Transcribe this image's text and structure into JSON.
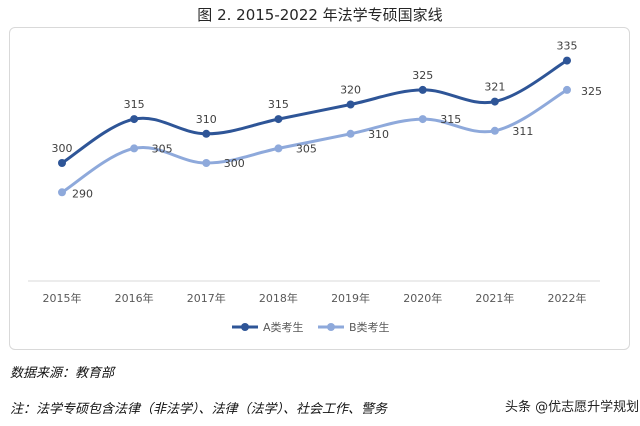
{
  "title": "图 2. 2015-2022 年法学专硕国家线",
  "chart_data": {
    "type": "line",
    "categories": [
      "2015年",
      "2016年",
      "2017年",
      "2018年",
      "2019年",
      "2020年",
      "2021年",
      "2022年"
    ],
    "series": [
      {
        "name": "A类考生",
        "color": "#2e5597",
        "values": [
          300,
          315,
          310,
          315,
          320,
          325,
          321,
          335
        ]
      },
      {
        "name": "B类考生",
        "color": "#8ea9db",
        "values": [
          290,
          305,
          300,
          305,
          310,
          315,
          311,
          325
        ]
      }
    ],
    "ylim": [
      260,
      340
    ],
    "grid": false,
    "legend_position": "bottom"
  },
  "notes": {
    "source": "数据来源：教育部",
    "detail": "注：法学专硕包含法律（非法学）、法律（法学）、社会工作、警务"
  },
  "watermark": "头条 @优志愿升学规划"
}
